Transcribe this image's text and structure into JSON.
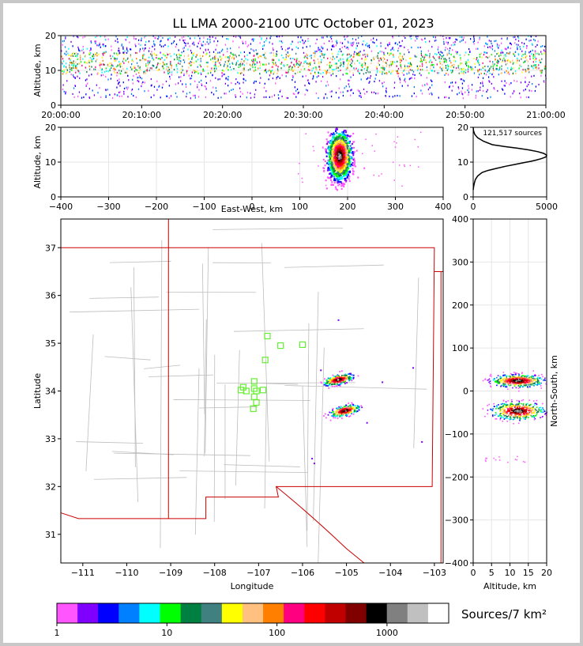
{
  "title": "LL LMA 2000-2100 UTC October 01, 2023",
  "chart_data": [
    {
      "type": "heatmap",
      "panel": "time-height",
      "xlabel": "",
      "ylabel": "Altitude, km",
      "xticks": [
        "20:00:00",
        "20:10:00",
        "20:20:00",
        "20:30:00",
        "20:40:00",
        "20:50:00",
        "21:00:00"
      ],
      "xlim": [
        "20:00:00",
        "21:00:00"
      ],
      "ylim": [
        0,
        20
      ],
      "yticks": [
        0,
        10,
        20
      ],
      "core_altitude_km": [
        9,
        15
      ]
    },
    {
      "type": "heatmap",
      "panel": "east-west-altitude",
      "xlabel": "East-West, km",
      "ylabel": "Altitude, km",
      "xlim": [
        -400,
        400
      ],
      "xticks": [
        -400,
        -300,
        -200,
        -100,
        0,
        100,
        200,
        300,
        400
      ],
      "ylim": [
        0,
        20
      ],
      "yticks": [
        0,
        10,
        20
      ],
      "cluster_ew_km": [
        160,
        205
      ],
      "peak_ew_km": 182
    },
    {
      "type": "line",
      "panel": "altitude-histogram",
      "annotation": "121,517 sources",
      "xlim": [
        0,
        5000
      ],
      "xticks": [
        0,
        5000
      ],
      "ylim": [
        0,
        20
      ],
      "yticks": [
        0,
        10,
        20
      ],
      "x": [
        0,
        30,
        80,
        150,
        300,
        600,
        1000,
        1600,
        2200,
        2800,
        3400,
        3900,
        4300,
        4650,
        4950,
        5000,
        4800,
        4400,
        3800,
        3000,
        2100,
        1300,
        700,
        300,
        100,
        20,
        0
      ],
      "y": [
        2,
        3,
        4,
        5,
        6,
        7,
        7.6,
        8.2,
        8.8,
        9.3,
        9.8,
        10.2,
        10.6,
        11,
        11.5,
        12,
        12.5,
        13,
        13.5,
        14,
        14.5,
        15,
        16,
        17,
        18,
        19,
        20
      ]
    },
    {
      "type": "heatmap",
      "panel": "plan-view",
      "xlabel": "Longitude",
      "ylabel": "Latitude",
      "xlim": [
        -111.5,
        -102.8
      ],
      "ylim": [
        30.4,
        37.6
      ],
      "xticks": [
        -111,
        -110,
        -109,
        -108,
        -107,
        -106,
        -105,
        -104,
        -103
      ],
      "yticks": [
        31,
        32,
        33,
        34,
        35,
        36,
        37
      ],
      "clusters": [
        {
          "lon": -105.2,
          "lat": 34.25
        },
        {
          "lon": -105.05,
          "lat": 33.6
        }
      ],
      "stations": [
        {
          "lon": -106.8,
          "lat": 35.15
        },
        {
          "lon": -106.5,
          "lat": 34.95
        },
        {
          "lon": -106.0,
          "lat": 34.97
        },
        {
          "lon": -106.85,
          "lat": 34.65
        },
        {
          "lon": -107.1,
          "lat": 34.2
        },
        {
          "lon": -107.35,
          "lat": 34.08
        },
        {
          "lon": -107.1,
          "lat": 34.05
        },
        {
          "lon": -107.28,
          "lat": 34.0
        },
        {
          "lon": -107.4,
          "lat": 34.02
        },
        {
          "lon": -107.05,
          "lat": 34.0
        },
        {
          "lon": -106.9,
          "lat": 34.02
        },
        {
          "lon": -107.1,
          "lat": 33.88
        },
        {
          "lon": -107.05,
          "lat": 33.76
        },
        {
          "lon": -107.12,
          "lat": 33.63
        }
      ]
    },
    {
      "type": "heatmap",
      "panel": "altitude-north-south",
      "xlabel": "Altitude, km",
      "ylabel": "North-South, km",
      "xlim": [
        0,
        20
      ],
      "xticks": [
        0,
        5,
        10,
        15,
        20
      ],
      "ylim": [
        -400,
        400
      ],
      "yticks": [
        -400,
        -300,
        -200,
        -100,
        0,
        100,
        200,
        300,
        400
      ],
      "clusters_ns_km": [
        25,
        -45
      ],
      "peak_altitude_km": 12
    },
    {
      "type": "table",
      "panel": "colorbar",
      "label": "Sources/7 km²",
      "ticks": [
        "1",
        "10",
        "100",
        "1000"
      ],
      "colors": [
        "#ff55ff",
        "#8000ff",
        "#0000ff",
        "#0080ff",
        "#00ffff",
        "#00ff00",
        "#008040",
        "#408080",
        "#ffff00",
        "#ffc080",
        "#ff8000",
        "#ff0080",
        "#ff0000",
        "#c00000",
        "#800000",
        "#000000",
        "#808080",
        "#c0c0c0",
        "#ffffff"
      ]
    }
  ]
}
